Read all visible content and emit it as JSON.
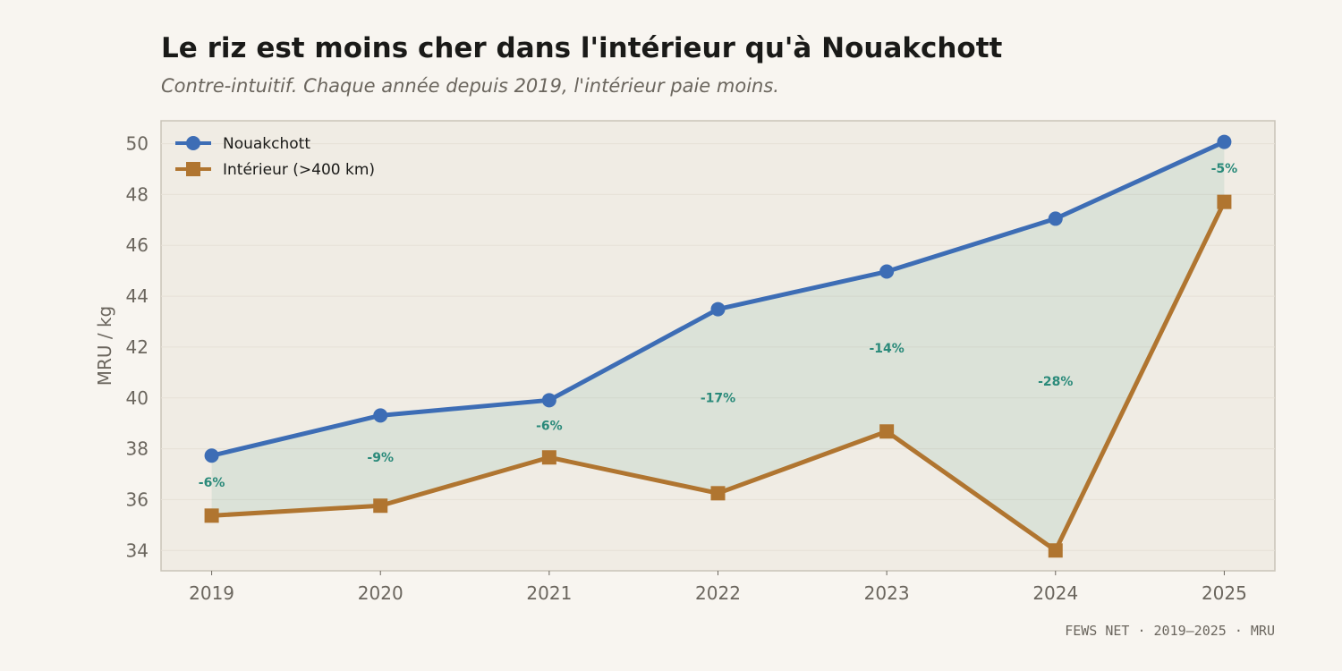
{
  "title": "Le riz est moins cher dans l'intérieur qu'à Nouakchott",
  "subtitle": "Contre-intuitif. Chaque année depuis 2019, l'intérieur paie moins.",
  "footer": "FEWS NET · 2019–2025 · MRU",
  "chart_data": {
    "type": "line",
    "title": "Le riz est moins cher dans l'intérieur qu'à Nouakchott",
    "subtitle": "Contre-intuitif. Chaque année depuis 2019, l'intérieur paie moins.",
    "xlabel": "",
    "ylabel": "MRU / kg",
    "x": [
      2019,
      2020,
      2021,
      2022,
      2023,
      2024,
      2025
    ],
    "xlim": [
      2018.7,
      2025.3
    ],
    "ylim": [
      33.2,
      50.9
    ],
    "yticks": [
      34,
      36,
      38,
      40,
      42,
      44,
      46,
      48,
      50
    ],
    "grid": true,
    "legend": "top-left",
    "series": [
      {
        "name": "Nouakchott",
        "color": "#3d6db5",
        "marker": "circle",
        "values": [
          37.73,
          39.31,
          39.91,
          43.49,
          44.97,
          47.05,
          50.07
        ]
      },
      {
        "name": "Intérieur (>400 km)",
        "color": "#b07530",
        "marker": "square",
        "values": [
          35.37,
          35.76,
          37.66,
          36.25,
          38.68,
          34.0,
          47.71
        ]
      }
    ],
    "annotations": [
      "-6%",
      "-9%",
      "-6%",
      "-17%",
      "-14%",
      "-28%",
      "-5%"
    ],
    "fill_between_color": "#2a8a7a"
  }
}
